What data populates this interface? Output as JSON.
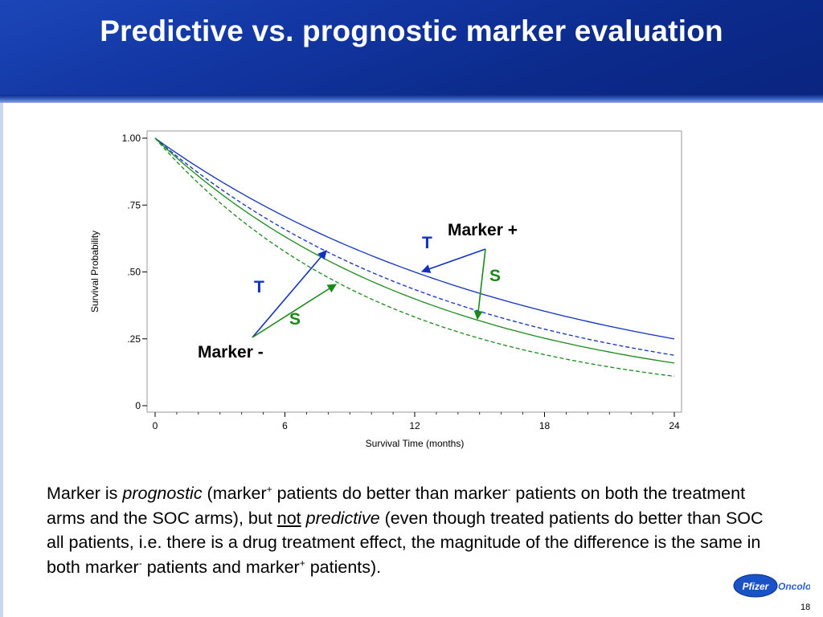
{
  "title": "Predictive vs. prognostic marker evaluation",
  "slide_number": "18",
  "logo_text": "Pfizer Oncology",
  "colors": {
    "blue": "#1030c0",
    "green": "#1a8a1a",
    "header": "#1236a2"
  },
  "annotations": {
    "marker_plus": "Marker +",
    "marker_minus": "Marker -",
    "t_plus": "T",
    "s_plus": "S",
    "t_minus": "T",
    "s_minus": "S"
  },
  "body": {
    "p1": "Marker is ",
    "p2": "prognostic",
    "p3": " (marker",
    "p4": "+",
    "p5": " patients do better than marker",
    "p6": "-",
    "p7": " patients on both the treatment arms and the SOC arms), but ",
    "p8": "not",
    "p9": " ",
    "p10": "predictive",
    "p11": " (even though treated patients do better than SOC all patients, i.e. there is a drug treatment effect, the magnitude of the difference is the same in both marker",
    "p12": "-",
    "p13": " patients and marker",
    "p14": "+",
    "p15": " patients)."
  },
  "chart_data": {
    "type": "line",
    "xlabel": "Survival Time  (months)",
    "ylabel": "Survival  Probability",
    "xlim": [
      0,
      24
    ],
    "ylim": [
      0,
      1
    ],
    "xticks": [
      0,
      6,
      12,
      18,
      24
    ],
    "xtick_labels": [
      "0",
      "6",
      "12",
      "18",
      "24"
    ],
    "yticks": [
      0,
      0.25,
      0.5,
      0.75,
      1.0
    ],
    "ytick_labels": [
      "0",
      ".25",
      ".50",
      ".75",
      "1.00"
    ],
    "grid": false,
    "series": [
      {
        "marker": "+",
        "arm": "T",
        "color": "#1030c0",
        "dash": false,
        "rate": 0.0578
      },
      {
        "marker": "+",
        "arm": "S",
        "color": "#1030c0",
        "dash": true,
        "rate": 0.0695
      },
      {
        "marker": "-",
        "arm": "T",
        "color": "#1a8a1a",
        "dash": false,
        "rate": 0.0765
      },
      {
        "marker": "-",
        "arm": "S",
        "color": "#1a8a1a",
        "dash": true,
        "rate": 0.092
      }
    ]
  }
}
